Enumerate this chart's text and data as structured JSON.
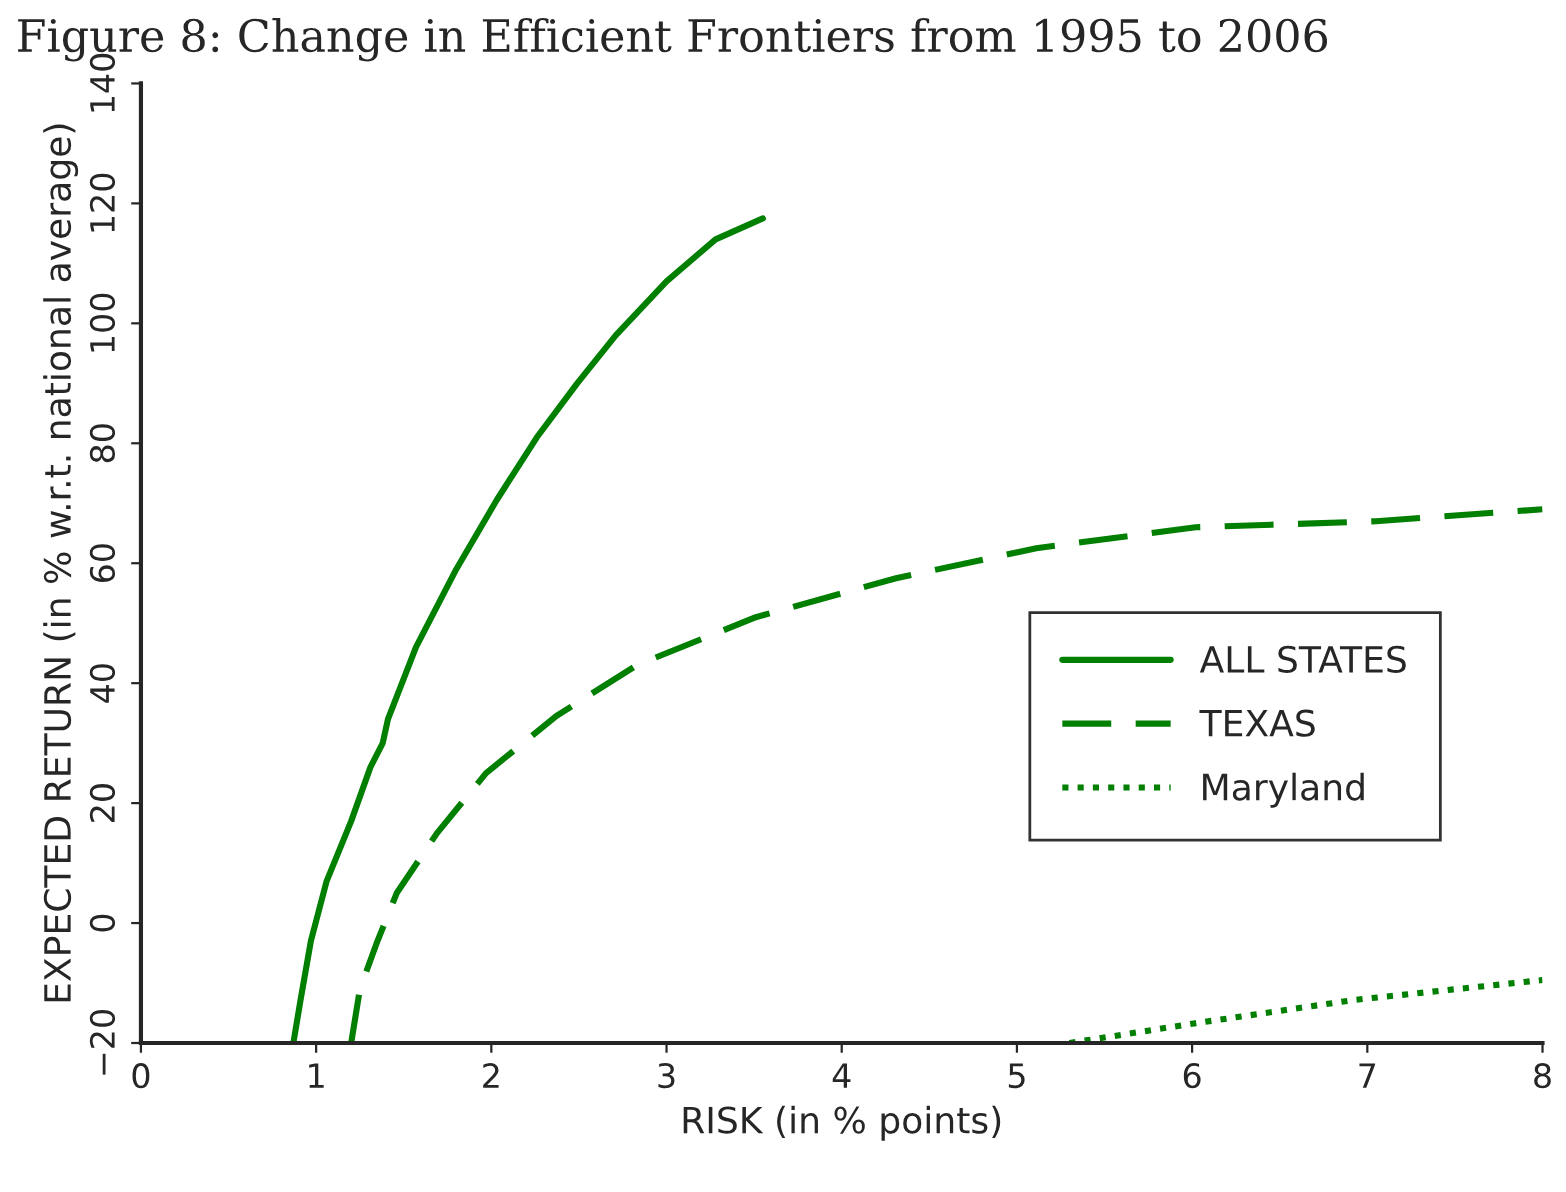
{
  "chart_data": {
    "type": "line",
    "title": "Figure 8: Change in Efficient Frontiers from 1995 to 2006",
    "xlabel": "RISK (in % points)",
    "ylabel": "EXPECTED RETURN (in % w.r.t. national average)",
    "xlim": [
      0,
      8
    ],
    "xticks": [
      0,
      1,
      2,
      3,
      4,
      5,
      6,
      7,
      8
    ],
    "ylim": [
      -20,
      140
    ],
    "yticks": [
      {
        "value": -20,
        "label": "−20"
      },
      0,
      20,
      40,
      60,
      80,
      100,
      120,
      140
    ],
    "grid": false,
    "legend": "right",
    "series": [
      {
        "name": "ALL STATES",
        "color": "#007f00",
        "line_style": "solid",
        "x": [
          0.87,
          0.91,
          0.97,
          1.06,
          1.2,
          1.31,
          1.38,
          1.41,
          1.57,
          1.8,
          2.03,
          2.26,
          2.49,
          2.71,
          3.0,
          3.28,
          3.55
        ],
        "values": [
          -20,
          -13,
          -3,
          7,
          17,
          26,
          30,
          34,
          46,
          59,
          70.5,
          81,
          90,
          98,
          107,
          114,
          117.5
        ]
      },
      {
        "name": "TEXAS",
        "color": "#007f00",
        "line_style": "dashed",
        "x": [
          1.2,
          1.25,
          1.35,
          1.46,
          1.69,
          1.97,
          2.37,
          2.83,
          3.51,
          4.31,
          5.11,
          6.02,
          7.05,
          8.0
        ],
        "values": [
          -20,
          -11,
          -3,
          5,
          15,
          25,
          34.5,
          43,
          51,
          57.5,
          62.5,
          66,
          67,
          69
        ]
      },
      {
        "name": "Maryland",
        "color": "#007f00",
        "line_style": "dotted",
        "x": [
          5.3,
          6.02,
          6.93,
          8.0
        ],
        "values": [
          -20,
          -16.7,
          -12.8,
          -9.5
        ]
      }
    ]
  }
}
